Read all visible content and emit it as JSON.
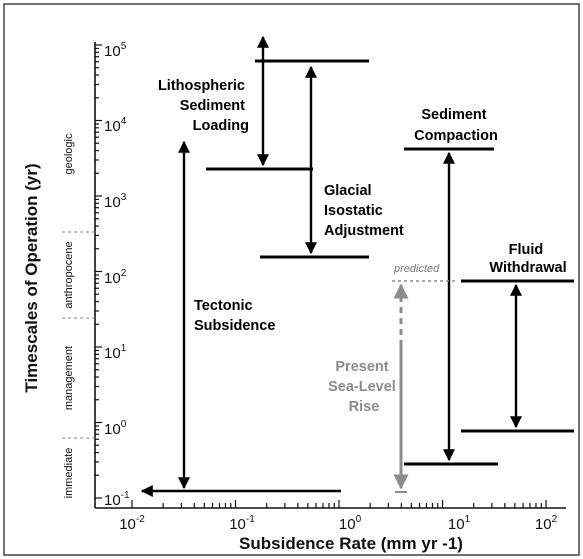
{
  "diagram": {
    "y_axis_title": "Timescales of Operation (yr)",
    "x_axis_title": "Subsidence Rate (mm yr -1)",
    "x_ticks": [
      {
        "base": "10",
        "exp": "-2"
      },
      {
        "base": "10",
        "exp": "-1"
      },
      {
        "base": "10",
        "exp": "0"
      },
      {
        "base": "10",
        "exp": "1"
      },
      {
        "base": "10",
        "exp": "2"
      }
    ],
    "y_ticks": [
      {
        "base": "10",
        "exp": "5"
      },
      {
        "base": "10",
        "exp": "4"
      },
      {
        "base": "10",
        "exp": "3"
      },
      {
        "base": "10",
        "exp": "2"
      },
      {
        "base": "10",
        "exp": "1"
      },
      {
        "base": "10",
        "exp": "0"
      },
      {
        "base": "10",
        "exp": "-1"
      }
    ],
    "bands": [
      {
        "label": "geologic"
      },
      {
        "label": "anthropocene"
      },
      {
        "label": "management"
      },
      {
        "label": "immediate"
      }
    ],
    "processes": {
      "lithospheric": [
        "Lithospheric",
        "Sediment",
        "Loading"
      ],
      "glacial": [
        "Glacial",
        "Isostatic",
        "Adjustment"
      ],
      "tectonic": [
        "Tectonic",
        "Subsidence"
      ],
      "compaction": [
        "Sediment",
        "Compaction"
      ],
      "fluid": [
        "Fluid",
        "Withdrawal"
      ],
      "sealevel": [
        "Present",
        "Sea-Level",
        "Rise"
      ]
    },
    "predicted_label": "predicted",
    "colors": {
      "main": "#000000",
      "sea_level": "#8c8c8c",
      "predicted": "#777777"
    }
  }
}
